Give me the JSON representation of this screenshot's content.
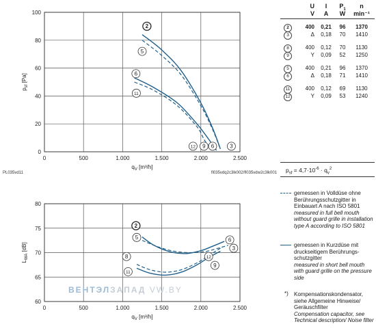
{
  "chart_data": [
    {
      "type": "line",
      "id": "pressure",
      "ylabel_main": "p",
      "ylabel_sub": "sf",
      "ylabel_unit": " [Pa]",
      "xlabel_main": "q",
      "xlabel_sub": "V",
      "xlabel_unit": " [m³/h]",
      "xlim": [
        0,
        2500
      ],
      "ylim": [
        0,
        100
      ],
      "x_ticks": [
        "0",
        "500",
        "1.000",
        "1.500",
        "2.000",
        "2.500"
      ],
      "y_ticks": [
        "0",
        "20",
        "40",
        "60",
        "80",
        "100"
      ],
      "grid": true,
      "series": [
        {
          "marker": "2",
          "style": "solid",
          "color": "#1f5f8b",
          "x": [
            1250,
            1500,
            1750,
            2000,
            2150,
            2250
          ],
          "y": [
            84,
            73,
            58,
            35,
            17,
            2
          ]
        },
        {
          "marker": "5",
          "style": "dashed",
          "color": "#1f5f8b",
          "x": [
            1250,
            1500,
            1750,
            2000,
            2150,
            2250
          ],
          "y": [
            80,
            69,
            55,
            33,
            16,
            2
          ]
        },
        {
          "marker": "6",
          "style": "solid",
          "color": "#1f5f8b",
          "x": [
            1150,
            1400,
            1700,
            1950,
            2100,
            2200
          ],
          "y": [
            53,
            46,
            35,
            20,
            9,
            1
          ]
        },
        {
          "marker": "11",
          "style": "dashed",
          "color": "#1f5f8b",
          "x": [
            1150,
            1400,
            1700,
            1950,
            2050,
            2150
          ],
          "y": [
            50,
            44,
            33,
            18,
            8,
            1
          ]
        }
      ],
      "markers": [
        {
          "label": "2",
          "x": 1310,
          "y": 90,
          "bold": true
        },
        {
          "label": "5",
          "x": 1250,
          "y": 72
        },
        {
          "label": "6",
          "x": 1170,
          "y": 56
        },
        {
          "label": "11",
          "x": 1175,
          "y": 42
        },
        {
          "label": "12",
          "x": 1900,
          "y": 4
        },
        {
          "label": "9",
          "x": 2040,
          "y": 4
        },
        {
          "label": "6",
          "x": 2150,
          "y": 4
        },
        {
          "label": "3",
          "x": 2390,
          "y": 4
        }
      ],
      "footer_left": "PL035vd11",
      "footer_right": "fl035vdq2c3lk002/fl035vdw2c3lk001"
    },
    {
      "type": "line",
      "id": "sound",
      "ylabel_main": "L",
      "ylabel_sub": "WA",
      "ylabel_unit": " [dB]",
      "xlabel_main": "q",
      "xlabel_sub": "V",
      "xlabel_unit": " [m³/h]",
      "xlim": [
        0,
        2500
      ],
      "ylim": [
        60,
        80
      ],
      "x_ticks": [
        "0",
        "500",
        "1.000",
        "1.500",
        "2.000",
        "2.500"
      ],
      "y_ticks": [
        "60",
        "65",
        "70",
        "75",
        "80"
      ],
      "grid": true,
      "series": [
        {
          "marker": "2",
          "style": "solid",
          "color": "#1f5f8b",
          "x": [
            1250,
            1400,
            1600,
            1800,
            2000,
            2150,
            2300
          ],
          "y": [
            73.2,
            71.5,
            70.2,
            69.8,
            70.4,
            71.3,
            72.3
          ]
        },
        {
          "marker": "5",
          "style": "dashed",
          "color": "#1f5f8b",
          "x": [
            1250,
            1450,
            1650,
            1850,
            2050,
            2200,
            2350
          ],
          "y": [
            72.5,
            71.2,
            70.3,
            70.0,
            70.2,
            70.8,
            71.5
          ]
        },
        {
          "marker": "8",
          "style": "dashed",
          "color": "#1f5f8b",
          "x": [
            1180,
            1350,
            1550,
            1750,
            1950,
            2100,
            2250
          ],
          "y": [
            67.6,
            66.5,
            66.0,
            66.5,
            67.9,
            69.4,
            70.9
          ]
        },
        {
          "marker": "11",
          "style": "solid",
          "color": "#1f5f8b",
          "x": [
            1180,
            1350,
            1550,
            1750,
            1950,
            2100,
            2250
          ],
          "y": [
            66.8,
            65.8,
            65.4,
            66.0,
            67.5,
            69.0,
            70.3
          ]
        }
      ],
      "markers": [
        {
          "label": "2",
          "x": 1170,
          "y": 75.5,
          "bold": true
        },
        {
          "label": "5",
          "x": 1180,
          "y": 73.1
        },
        {
          "label": "8",
          "x": 1050,
          "y": 69.2
        },
        {
          "label": "11",
          "x": 1070,
          "y": 66.1
        },
        {
          "label": "12",
          "x": 2100,
          "y": 69.2
        },
        {
          "label": "9",
          "x": 2180,
          "y": 67.4
        },
        {
          "label": "6",
          "x": 2370,
          "y": 72.6
        },
        {
          "label": "3",
          "x": 2420,
          "y": 70.9
        }
      ]
    }
  ],
  "table": {
    "headers": [
      "",
      "U",
      "I",
      "P",
      "n"
    ],
    "header_sub_p": "1",
    "units": [
      "",
      "V",
      "A",
      "W",
      "min⁻¹"
    ],
    "groups": [
      {
        "rows": [
          {
            "marker": "2",
            "sym": "",
            "U": "400",
            "I": "0,21",
            "P": "96",
            "n": "1370",
            "bold": true
          },
          {
            "marker": "3",
            "sym": "Δ",
            "U": "",
            "I": "0,18",
            "P": "70",
            "n": "1410",
            "bold": false
          }
        ]
      },
      {
        "rows": [
          {
            "marker": "8",
            "sym": "",
            "U": "400",
            "I": "0,12",
            "P": "70",
            "n": "1130",
            "bold": false
          },
          {
            "marker": "9",
            "sym": "Y",
            "U": "",
            "I": "0,09",
            "P": "52",
            "n": "1250",
            "bold": false
          }
        ]
      },
      {
        "rows": [
          {
            "marker": "5",
            "sym": "",
            "U": "400",
            "I": "0,21",
            "P": "96",
            "n": "1370",
            "bold": false
          },
          {
            "marker": "6",
            "sym": "Δ",
            "U": "",
            "I": "0,18",
            "P": "71",
            "n": "1410",
            "bold": false
          }
        ]
      },
      {
        "rows": [
          {
            "marker": "11",
            "sym": "",
            "U": "400",
            "I": "0,12",
            "P": "69",
            "n": "1130",
            "bold": false
          },
          {
            "marker": "12",
            "sym": "Y",
            "U": "",
            "I": "0,09",
            "P": "53",
            "n": "1240",
            "bold": false
          }
        ]
      }
    ]
  },
  "formula": "p",
  "formula_sub": "sf",
  "formula_rest": " = 4,7·10",
  "formula_exp": "-6",
  "formula_tail": " · q",
  "formula_tail_sub": "v",
  "formula_tail_sup": "2",
  "legend": {
    "dashed_de": "gemessen in Volldüse ohne Berührungsschutzgitter in Einbauart A nach ISO 5801",
    "dashed_en": "measured in full bell mouth without guard grille in installation type A according to ISO 5801",
    "solid_de": "gemessen in Kurzdüse mit druckseitigem Berührungs-schutzgitter",
    "solid_en": "measured in short bell mouth with guard grille on the pressure side",
    "note_mark": "*)",
    "note_de": "Kompensationskondensator, siehe Allgemeine Hinweise/ Geräuschfilter",
    "note_en": "Compensation capacitor, see Technical description/ Noise filter",
    "line_color": "#1f5f8b"
  },
  "watermark": {
    "part1": "ВЕНТЭЛ",
    "part2": "ЗАПАД",
    "part3": "VW.BY"
  }
}
